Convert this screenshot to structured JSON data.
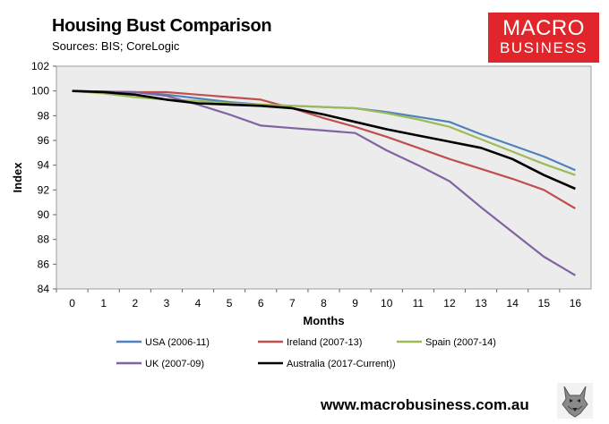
{
  "header": {
    "title": "Housing Bust Comparison",
    "subtitle": "Sources: BIS; CoreLogic"
  },
  "logo": {
    "line1": "MACRO",
    "line2": "BUSINESS",
    "color": "#e0262b"
  },
  "footer": {
    "url": "www.macrobusiness.com.au"
  },
  "mascot": {
    "icon": "wolf-mascot-icon"
  },
  "chart_data": {
    "type": "line",
    "xlabel": "Months",
    "ylabel": "Index",
    "ylim": [
      84,
      102
    ],
    "yticks": [
      84,
      86,
      88,
      90,
      92,
      94,
      96,
      98,
      100,
      102
    ],
    "x": [
      0,
      1,
      2,
      3,
      4,
      5,
      6,
      7,
      8,
      9,
      10,
      11,
      12,
      13,
      14,
      15,
      16
    ],
    "grid": false,
    "plot_background": "#ececec",
    "legend_position": "bottom",
    "series": [
      {
        "name": "USA (2006-11)",
        "color": "#4f81bd",
        "values": [
          100,
          99.95,
          99.9,
          99.7,
          99.4,
          99.1,
          98.9,
          98.8,
          98.7,
          98.6,
          98.3,
          97.9,
          97.5,
          96.5,
          95.6,
          94.7,
          93.6
        ]
      },
      {
        "name": "Ireland (2007-13)",
        "color": "#c0504d",
        "values": [
          100,
          99.95,
          99.9,
          99.9,
          99.7,
          99.5,
          99.3,
          98.6,
          97.8,
          97.1,
          96.3,
          95.4,
          94.5,
          93.7,
          92.9,
          92.0,
          90.5
        ]
      },
      {
        "name": "Spain (2007-14)",
        "color": "#9bbb59",
        "values": [
          100,
          99.8,
          99.5,
          99.3,
          99.2,
          99.0,
          98.9,
          98.8,
          98.7,
          98.6,
          98.2,
          97.7,
          97.1,
          96.1,
          95.1,
          94.1,
          93.2
        ]
      },
      {
        "name": "UK (2007-09)",
        "color": "#8064a2",
        "values": [
          100,
          99.95,
          99.9,
          99.6,
          98.9,
          98.1,
          97.2,
          97.0,
          96.8,
          96.6,
          95.2,
          94.0,
          92.7,
          90.6,
          88.6,
          86.6,
          85.1
        ]
      },
      {
        "name": "Australia (2017-Current))",
        "color": "#000000",
        "values": [
          100,
          99.9,
          99.7,
          99.3,
          99.0,
          98.9,
          98.8,
          98.6,
          98.1,
          97.5,
          96.9,
          96.4,
          95.9,
          95.4,
          94.5,
          93.2,
          92.1
        ]
      }
    ]
  }
}
